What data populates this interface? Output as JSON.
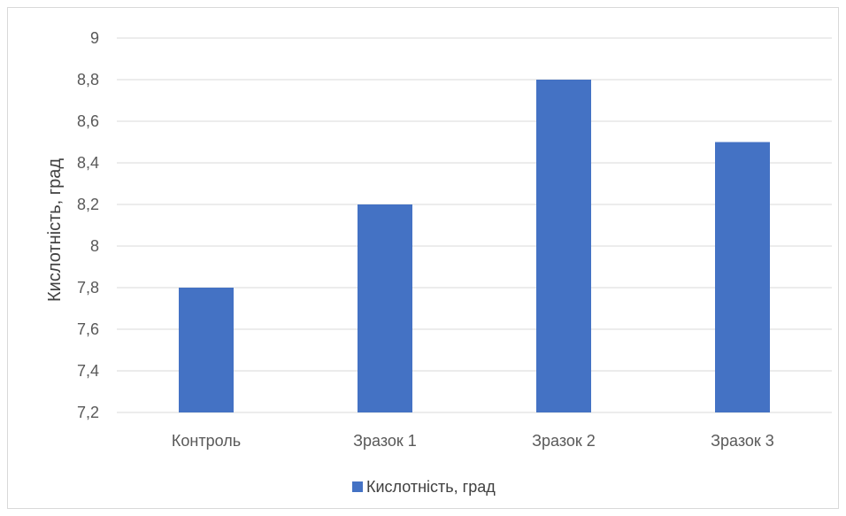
{
  "chart_data": {
    "type": "bar",
    "title": "",
    "xlabel": "",
    "ylabel": "Кислотність, град",
    "categories": [
      "Контроль",
      "Зразок 1",
      "Зразок 2",
      "Зразок 3"
    ],
    "series": [
      {
        "name": "Кислотність, град",
        "values": [
          7.8,
          8.2,
          8.8,
          8.5
        ],
        "color": "#4472c4"
      }
    ],
    "ylim": [
      7.2,
      9
    ],
    "yticks": [
      7.2,
      7.4,
      7.6,
      7.8,
      8,
      8.2,
      8.4,
      8.6,
      8.8,
      9
    ],
    "ytick_labels": [
      "7,2",
      "7,4",
      "7,6",
      "7,8",
      "8",
      "8,2",
      "8,4",
      "8,6",
      "8,8",
      "9"
    ],
    "grid": true,
    "legend_position": "bottom",
    "colors": {
      "gridline": "#d9d9d9",
      "bar": "#4472c4"
    }
  }
}
